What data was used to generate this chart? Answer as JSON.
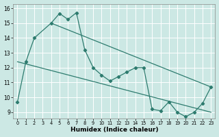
{
  "xlabel": "Humidex (Indice chaleur)",
  "background_color": "#cce8e4",
  "grid_color": "#ffffff",
  "line_color": "#2d7b6e",
  "xlim": [
    -0.5,
    23.5
  ],
  "ylim": [
    8.6,
    16.3
  ],
  "xticks": [
    0,
    1,
    2,
    3,
    4,
    5,
    6,
    7,
    8,
    9,
    10,
    11,
    12,
    13,
    14,
    15,
    16,
    17,
    18,
    19,
    20,
    21,
    22,
    23
  ],
  "yticks": [
    9,
    10,
    11,
    12,
    13,
    14,
    15,
    16
  ],
  "data_x": [
    0,
    1,
    2,
    4,
    5,
    6,
    7,
    8,
    9,
    10,
    11,
    12,
    13,
    14,
    15,
    16,
    17,
    18,
    19,
    20,
    21,
    22,
    23
  ],
  "data_y": [
    9.7,
    12.4,
    14.0,
    15.0,
    15.65,
    15.25,
    15.7,
    13.2,
    12.0,
    11.5,
    11.1,
    11.4,
    11.7,
    12.0,
    12.0,
    9.2,
    9.1,
    9.7,
    9.0,
    8.7,
    9.0,
    9.6,
    10.7
  ],
  "upper_line_x": [
    4,
    23
  ],
  "upper_line_y": [
    15.0,
    10.7
  ],
  "lower_line_x": [
    0,
    23
  ],
  "lower_line_y": [
    12.4,
    9.0
  ]
}
